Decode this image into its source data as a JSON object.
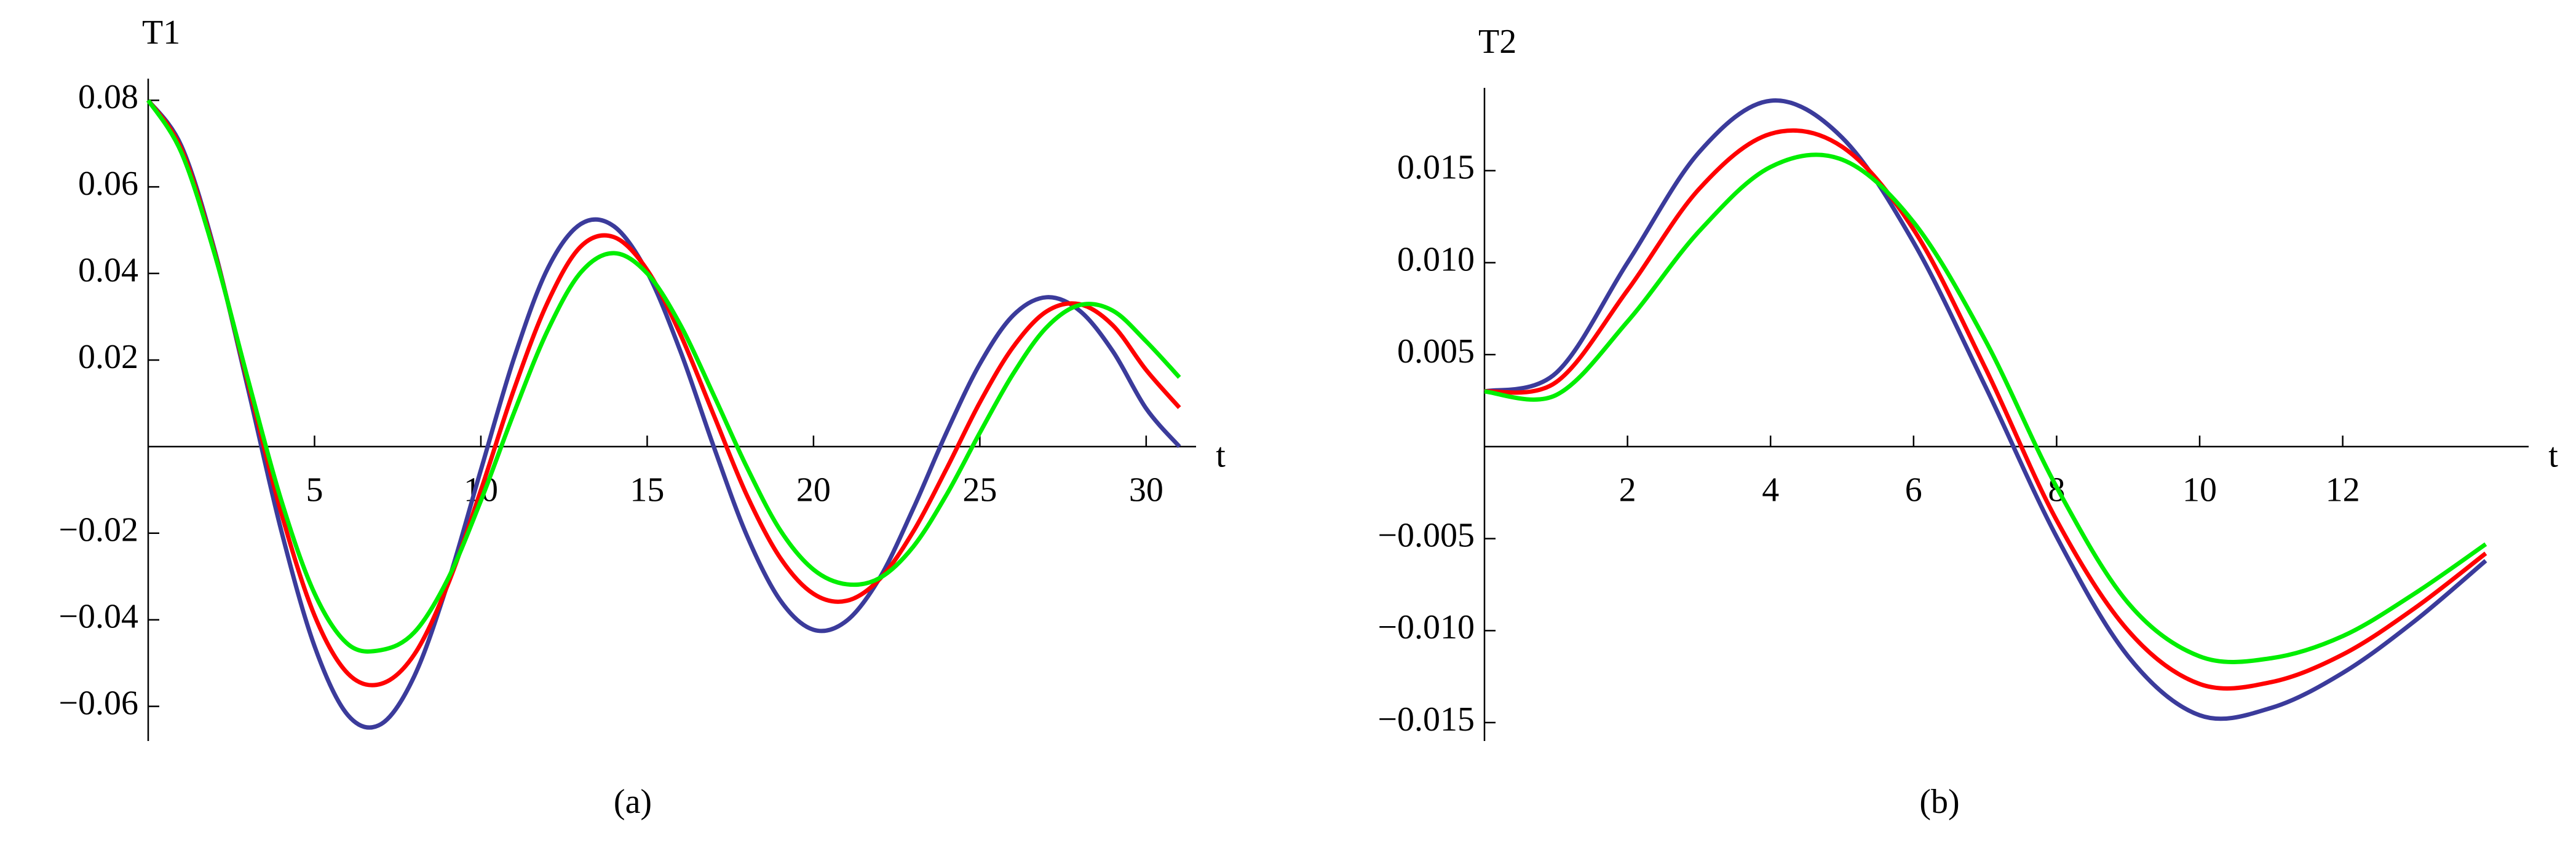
{
  "chart_data": [
    {
      "type": "line",
      "ylabel": "T1",
      "xlabel": "t",
      "caption": "(a)",
      "x": [
        0,
        1,
        2,
        3,
        4,
        5,
        6,
        7,
        8,
        9,
        10,
        11,
        12,
        13,
        14,
        15,
        16,
        17,
        18,
        19,
        20,
        21,
        22,
        23,
        24,
        25,
        26,
        27,
        28,
        29,
        30,
        31
      ],
      "series": [
        {
          "color": "#3b3b9b",
          "values": [
            0.08,
            0.0694,
            0.0453,
            0.0134,
            -0.0194,
            -0.0461,
            -0.062,
            -0.0641,
            -0.053,
            -0.0317,
            -0.0054,
            0.0205,
            0.041,
            0.0514,
            0.0509,
            0.0403,
            0.022,
            0.0,
            -0.0206,
            -0.0355,
            -0.0423,
            -0.0402,
            -0.0302,
            -0.0143,
            0.0033,
            0.0191,
            0.0303,
            0.0345,
            0.0314,
            0.022,
            0.0088,
            0.0
          ]
        },
        {
          "color": "#ff0000",
          "values": [
            0.08,
            0.0687,
            0.0448,
            0.0147,
            -0.0153,
            -0.039,
            -0.0524,
            -0.0548,
            -0.048,
            -0.032,
            -0.0101,
            0.0133,
            0.0332,
            0.0462,
            0.0484,
            0.0408,
            0.0259,
            0.0073,
            -0.0113,
            -0.0257,
            -0.034,
            -0.0356,
            -0.0305,
            -0.0196,
            -0.0051,
            0.0102,
            0.023,
            0.0312,
            0.0329,
            0.028,
            0.0177,
            0.009
          ]
        },
        {
          "color": "#00ee00",
          "values": [
            0.08,
            0.0679,
            0.0444,
            0.0155,
            -0.0124,
            -0.0339,
            -0.0456,
            -0.047,
            -0.0429,
            -0.0307,
            -0.0125,
            0.0079,
            0.0267,
            0.0402,
            0.0447,
            0.04,
            0.0281,
            0.0119,
            -0.0048,
            -0.0193,
            -0.0284,
            -0.0318,
            -0.0303,
            -0.0231,
            -0.0111,
            0.0032,
            0.0168,
            0.0275,
            0.0327,
            0.0314,
            0.0243,
            0.016
          ]
        }
      ],
      "xlim": [
        0,
        31.5
      ],
      "ylim": [
        -0.068,
        0.085
      ],
      "xticks": [
        5,
        10,
        15,
        20,
        25,
        30
      ],
      "yticks": [
        {
          "value": -0.06,
          "label": "−0.06"
        },
        {
          "value": -0.04,
          "label": "−0.04"
        },
        {
          "value": -0.02,
          "label": "−0.02"
        },
        0.02,
        0.04,
        0.06,
        0.08
      ]
    },
    {
      "type": "line",
      "ylabel": "T2",
      "xlabel": "t",
      "caption": "(b)",
      "x": [
        0,
        1,
        2,
        3,
        4,
        5,
        6,
        7,
        8,
        9,
        10,
        11,
        12,
        13,
        14
      ],
      "series": [
        {
          "color": "#3b3b9b",
          "values": [
            0.003,
            0.004,
            0.01,
            0.016,
            0.0188,
            0.0168,
            0.0111,
            0.0033,
            -0.0049,
            -0.0114,
            -0.0146,
            -0.0142,
            -0.0123,
            -0.0095,
            -0.0062
          ]
        },
        {
          "color": "#ff0000",
          "values": [
            0.003,
            0.0035,
            0.0085,
            0.014,
            0.017,
            0.0163,
            0.0118,
            0.0043,
            -0.004,
            -0.01,
            -0.0129,
            -0.0128,
            -0.0113,
            -0.0088,
            -0.0058
          ]
        },
        {
          "color": "#00ee00",
          "values": [
            0.003,
            0.0028,
            0.0068,
            0.0117,
            0.0152,
            0.0156,
            0.0122,
            0.0058,
            -0.0022,
            -0.0085,
            -0.0114,
            -0.0115,
            -0.0103,
            -0.008,
            -0.0053
          ]
        }
      ],
      "xlim": [
        0,
        14.6
      ],
      "ylim": [
        -0.016,
        0.0195
      ],
      "xticks": [
        2,
        4,
        6,
        8,
        10,
        12
      ],
      "yticks": [
        {
          "value": -0.015,
          "label": "−0.015"
        },
        {
          "value": -0.01,
          "label": "−0.010"
        },
        {
          "value": -0.005,
          "label": "−0.005"
        },
        0.005,
        {
          "value": 0.01,
          "label": "0.010"
        },
        0.015
      ]
    }
  ]
}
